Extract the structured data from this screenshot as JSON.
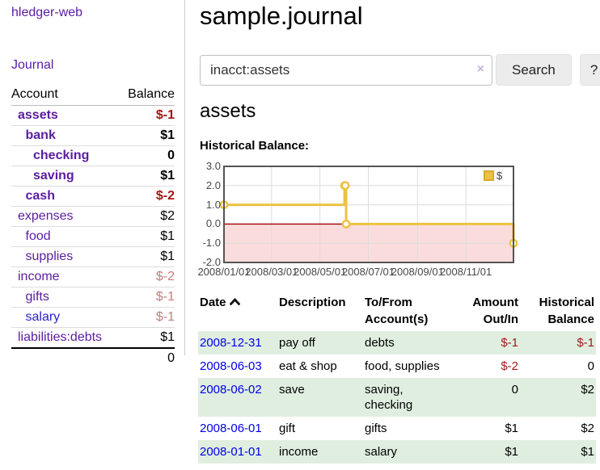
{
  "colors": {
    "link_purple": "#5a1ca0",
    "link_blue_unvisited": "#2a20d0",
    "date_link_blue": "#0000e8",
    "negative_strong_red": "#a11515",
    "negative_soft_red": "#c77c7c",
    "table_stripe_green": "#e0eee0",
    "chart_line_gold": "#edc240",
    "chart_negative_fill_pink": "#fbdcdc",
    "chart_zero_line_red": "#a00000",
    "chart_border_gray": "#545454"
  },
  "sidebar": {
    "app_title": "hledger-web",
    "journal_link": "Journal",
    "accounts_table": {
      "account_header": "Account",
      "balance_header": "Balance",
      "rows": [
        {
          "account": "assets",
          "balance": "$-1",
          "indent": 1,
          "matched": true,
          "balance_tone": "negative-strong",
          "link_tone": "purple"
        },
        {
          "account": "bank",
          "balance": "$1",
          "indent": 2,
          "matched": true,
          "balance_tone": "normal",
          "link_tone": "purple"
        },
        {
          "account": "checking",
          "balance": "0",
          "indent": 3,
          "matched": true,
          "balance_tone": "normal",
          "link_tone": "purple"
        },
        {
          "account": "saving",
          "balance": "$1",
          "indent": 3,
          "matched": true,
          "balance_tone": "normal",
          "link_tone": "purple"
        },
        {
          "account": "cash",
          "balance": "$-2",
          "indent": 2,
          "matched": true,
          "balance_tone": "negative-strong",
          "link_tone": "purple"
        },
        {
          "account": "expenses",
          "balance": "$2",
          "indent": 1,
          "matched": false,
          "balance_tone": "normal",
          "link_tone": "purple"
        },
        {
          "account": "food",
          "balance": "$1",
          "indent": 2,
          "matched": false,
          "balance_tone": "normal",
          "link_tone": "purple"
        },
        {
          "account": "supplies",
          "balance": "$1",
          "indent": 2,
          "matched": false,
          "balance_tone": "normal",
          "link_tone": "purple"
        },
        {
          "account": "income",
          "balance": "$-2",
          "indent": 1,
          "matched": false,
          "balance_tone": "negative-soft",
          "link_tone": "purple"
        },
        {
          "account": "gifts",
          "balance": "$-1",
          "indent": 2,
          "matched": false,
          "balance_tone": "negative-soft",
          "link_tone": "purple"
        },
        {
          "account": "salary",
          "balance": "$-1",
          "indent": 2,
          "matched": false,
          "balance_tone": "negative-soft",
          "link_tone": "blue"
        },
        {
          "account": "liabilities:debts",
          "balance": "$1",
          "indent": 1,
          "matched": false,
          "balance_tone": "normal",
          "link_tone": "purple"
        }
      ],
      "total": "0"
    }
  },
  "main": {
    "title": "sample.journal",
    "search": {
      "value": "inacct:assets",
      "clear_icon": "×",
      "search_button": "Search",
      "help_button": "?"
    },
    "account_heading": "assets",
    "chart_label": "Historical Balance:"
  },
  "chart_data": {
    "type": "line",
    "line_style": "step-after",
    "title": "Historical Balance:",
    "series": [
      {
        "name": "$",
        "color": "#edc240",
        "points": [
          {
            "date": "2008-01-01",
            "x_day": 0,
            "y": 1
          },
          {
            "date": "2008-06-01",
            "x_day": 152,
            "y": 2
          },
          {
            "date": "2008-06-02",
            "x_day": 153,
            "y": 2
          },
          {
            "date": "2008-06-03",
            "x_day": 154,
            "y": 0
          },
          {
            "date": "2008-12-31",
            "x_day": 365,
            "y": -1
          }
        ]
      }
    ],
    "x_ticks": [
      {
        "label": "2008/01/01",
        "x_day": 0
      },
      {
        "label": "2008/03/01",
        "x_day": 60
      },
      {
        "label": "2008/05/01",
        "x_day": 121
      },
      {
        "label": "2008/07/01",
        "x_day": 182
      },
      {
        "label": "2008/09/01",
        "x_day": 244
      },
      {
        "label": "2008/11/01",
        "x_day": 305
      }
    ],
    "y_ticks": [
      {
        "label": "3.0",
        "v": 3
      },
      {
        "label": "2.0",
        "v": 2
      },
      {
        "label": "1.0",
        "v": 1
      },
      {
        "label": "0.0",
        "v": 0
      },
      {
        "label": "-1.0",
        "v": -1
      },
      {
        "label": "-2.0",
        "v": -2
      }
    ],
    "xlim_days": [
      0,
      365
    ],
    "ylim": [
      -2,
      3
    ],
    "grid": true,
    "zero_line": true,
    "negative_region_shaded": true,
    "legend": {
      "label": "$",
      "position": "top-right"
    }
  },
  "register": {
    "headers": [
      {
        "line1": "Date",
        "line2": "",
        "sorted": "asc"
      },
      {
        "line1": "Description",
        "line2": ""
      },
      {
        "line1": "To/From",
        "line2": "Account(s)"
      },
      {
        "line1": "Amount",
        "line2": "Out/In"
      },
      {
        "line1": "Historical",
        "line2": "Balance"
      }
    ],
    "rows": [
      {
        "date": "2008-12-31",
        "description": "pay off",
        "accounts": "debts",
        "amount": "$-1",
        "amount_negative": true,
        "balance": "$-1",
        "balance_negative": true
      },
      {
        "date": "2008-06-03",
        "description": "eat & shop",
        "accounts": "food, supplies",
        "amount": "$-2",
        "amount_negative": true,
        "balance": "0",
        "balance_negative": false
      },
      {
        "date": "2008-06-02",
        "description": "save",
        "accounts": "saving,\nchecking",
        "amount": "0",
        "amount_negative": false,
        "balance": "$2",
        "balance_negative": false
      },
      {
        "date": "2008-06-01",
        "description": "gift",
        "accounts": "gifts",
        "amount": "$1",
        "amount_negative": false,
        "balance": "$2",
        "balance_negative": false
      },
      {
        "date": "2008-01-01",
        "description": "income",
        "accounts": "salary",
        "amount": "$1",
        "amount_negative": false,
        "balance": "$1",
        "balance_negative": false
      }
    ]
  }
}
